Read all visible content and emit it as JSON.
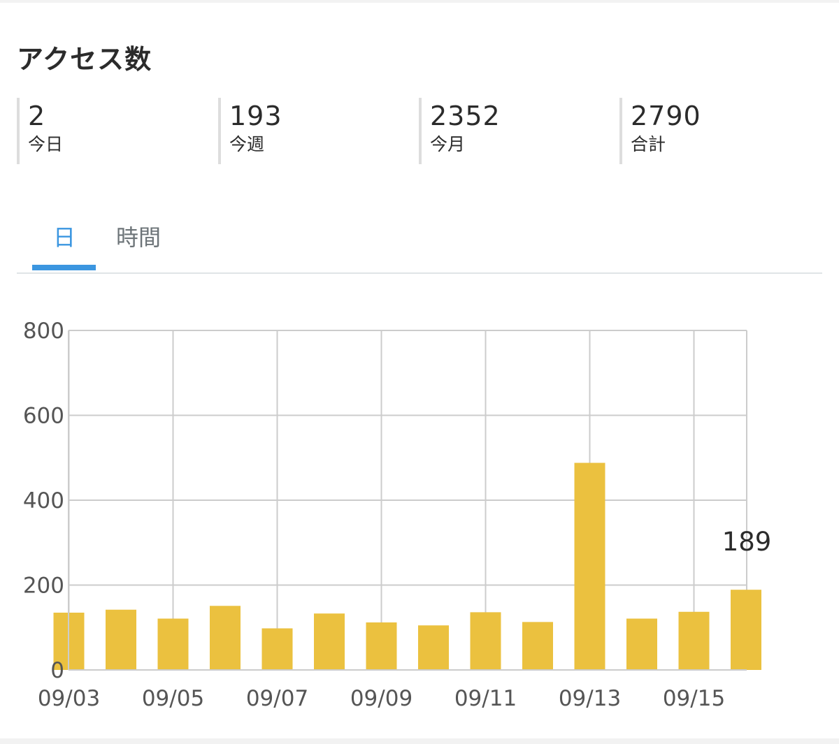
{
  "header": {
    "title": "アクセス数"
  },
  "stats": [
    {
      "value": "2",
      "label": "今日"
    },
    {
      "value": "193",
      "label": "今週"
    },
    {
      "value": "2352",
      "label": "今月"
    },
    {
      "value": "2790",
      "label": "合計"
    }
  ],
  "tabs": [
    {
      "label": "日",
      "active": true
    },
    {
      "label": "時間",
      "active": false
    }
  ],
  "colors": {
    "bar": "#ebc13f",
    "accent": "#3b96e0",
    "grid": "#cccccc"
  },
  "chart_data": {
    "type": "bar",
    "categories": [
      "09/03",
      "09/04",
      "09/05",
      "09/06",
      "09/07",
      "09/08",
      "09/09",
      "09/10",
      "09/11",
      "09/12",
      "09/13",
      "09/14",
      "09/15",
      "09/16"
    ],
    "x_tick_labels": [
      "09/03",
      "09/05",
      "09/07",
      "09/09",
      "09/11",
      "09/13",
      "09/15"
    ],
    "values": [
      135,
      142,
      121,
      151,
      98,
      133,
      112,
      105,
      136,
      113,
      488,
      121,
      137,
      189
    ],
    "y_ticks": [
      "0",
      "200",
      "400",
      "600",
      "800"
    ],
    "ylim": [
      0,
      800
    ],
    "grid": true,
    "data_labels": [
      {
        "category": "09/16",
        "text": "189"
      }
    ]
  }
}
